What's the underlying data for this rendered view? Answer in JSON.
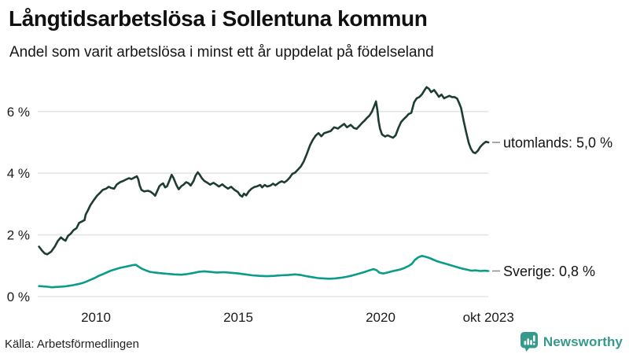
{
  "chart_data": {
    "type": "line",
    "title": "Långtidsarbetslösa i Sollentuna kommun",
    "subtitle": "Andel som varit arbetslösa i minst ett år uppdelat på födelseland",
    "legend_position": "right-end-labels",
    "grid": "horizontal",
    "y_axis": {
      "range": [
        0,
        7
      ],
      "ticks": [
        {
          "value": 0,
          "label": "0 %"
        },
        {
          "value": 2,
          "label": "2 %"
        },
        {
          "value": 4,
          "label": "4 %"
        },
        {
          "value": 6,
          "label": "6 %"
        }
      ]
    },
    "x_axis": {
      "range": [
        2008.0,
        2023.79
      ],
      "ticks": [
        {
          "year": 2010,
          "label": "2010"
        },
        {
          "year": 2015,
          "label": "2015"
        },
        {
          "year": 2020,
          "label": "2020"
        },
        {
          "year": 2023.79,
          "label": "okt 2023"
        }
      ]
    },
    "series": [
      {
        "name": "utomlands",
        "label": "utomlands: 5,0 %",
        "end_value_text": "5,0 %",
        "color": "#1d3c33",
        "points": [
          [
            2008.0,
            1.62
          ],
          [
            2008.1,
            1.5
          ],
          [
            2008.2,
            1.4
          ],
          [
            2008.29,
            1.37
          ],
          [
            2008.43,
            1.46
          ],
          [
            2008.56,
            1.63
          ],
          [
            2008.66,
            1.8
          ],
          [
            2008.77,
            1.92
          ],
          [
            2008.86,
            1.85
          ],
          [
            2008.93,
            1.81
          ],
          [
            2009.02,
            1.97
          ],
          [
            2009.12,
            2.04
          ],
          [
            2009.21,
            2.15
          ],
          [
            2009.32,
            2.22
          ],
          [
            2009.41,
            2.39
          ],
          [
            2009.5,
            2.43
          ],
          [
            2009.6,
            2.48
          ],
          [
            2009.64,
            2.66
          ],
          [
            2009.71,
            2.78
          ],
          [
            2009.81,
            2.97
          ],
          [
            2009.92,
            3.12
          ],
          [
            2010.04,
            3.27
          ],
          [
            2010.15,
            3.37
          ],
          [
            2010.24,
            3.46
          ],
          [
            2010.36,
            3.5
          ],
          [
            2010.45,
            3.56
          ],
          [
            2010.54,
            3.52
          ],
          [
            2010.64,
            3.5
          ],
          [
            2010.73,
            3.63
          ],
          [
            2010.85,
            3.71
          ],
          [
            2010.96,
            3.75
          ],
          [
            2011.07,
            3.8
          ],
          [
            2011.16,
            3.84
          ],
          [
            2011.25,
            3.81
          ],
          [
            2011.35,
            3.86
          ],
          [
            2011.44,
            3.9
          ],
          [
            2011.49,
            3.8
          ],
          [
            2011.54,
            3.6
          ],
          [
            2011.6,
            3.46
          ],
          [
            2011.69,
            3.41
          ],
          [
            2011.83,
            3.43
          ],
          [
            2011.92,
            3.4
          ],
          [
            2012.02,
            3.33
          ],
          [
            2012.08,
            3.27
          ],
          [
            2012.15,
            3.41
          ],
          [
            2012.23,
            3.58
          ],
          [
            2012.29,
            3.63
          ],
          [
            2012.36,
            3.67
          ],
          [
            2012.43,
            3.54
          ],
          [
            2012.5,
            3.58
          ],
          [
            2012.6,
            3.8
          ],
          [
            2012.66,
            3.95
          ],
          [
            2012.73,
            3.84
          ],
          [
            2012.82,
            3.63
          ],
          [
            2012.91,
            3.48
          ],
          [
            2013.0,
            3.58
          ],
          [
            2013.08,
            3.63
          ],
          [
            2013.17,
            3.71
          ],
          [
            2013.26,
            3.67
          ],
          [
            2013.33,
            3.6
          ],
          [
            2013.43,
            3.75
          ],
          [
            2013.5,
            3.92
          ],
          [
            2013.58,
            4.03
          ],
          [
            2013.65,
            3.95
          ],
          [
            2013.72,
            3.84
          ],
          [
            2013.81,
            3.75
          ],
          [
            2013.92,
            3.69
          ],
          [
            2014.01,
            3.63
          ],
          [
            2014.13,
            3.69
          ],
          [
            2014.23,
            3.63
          ],
          [
            2014.32,
            3.57
          ],
          [
            2014.44,
            3.64
          ],
          [
            2014.53,
            3.57
          ],
          [
            2014.64,
            3.5
          ],
          [
            2014.75,
            3.56
          ],
          [
            2014.87,
            3.46
          ],
          [
            2014.99,
            3.39
          ],
          [
            2015.06,
            3.29
          ],
          [
            2015.14,
            3.24
          ],
          [
            2015.2,
            3.34
          ],
          [
            2015.28,
            3.28
          ],
          [
            2015.37,
            3.41
          ],
          [
            2015.47,
            3.5
          ],
          [
            2015.56,
            3.55
          ],
          [
            2015.67,
            3.58
          ],
          [
            2015.77,
            3.62
          ],
          [
            2015.84,
            3.54
          ],
          [
            2015.93,
            3.62
          ],
          [
            2016.02,
            3.57
          ],
          [
            2016.13,
            3.6
          ],
          [
            2016.22,
            3.66
          ],
          [
            2016.31,
            3.61
          ],
          [
            2016.44,
            3.7
          ],
          [
            2016.53,
            3.74
          ],
          [
            2016.62,
            3.7
          ],
          [
            2016.71,
            3.76
          ],
          [
            2016.81,
            3.86
          ],
          [
            2016.9,
            3.98
          ],
          [
            2017.0,
            4.02
          ],
          [
            2017.1,
            4.12
          ],
          [
            2017.2,
            4.22
          ],
          [
            2017.3,
            4.38
          ],
          [
            2017.42,
            4.65
          ],
          [
            2017.52,
            4.9
          ],
          [
            2017.62,
            5.08
          ],
          [
            2017.72,
            5.22
          ],
          [
            2017.82,
            5.3
          ],
          [
            2017.92,
            5.2
          ],
          [
            2018.02,
            5.3
          ],
          [
            2018.12,
            5.33
          ],
          [
            2018.25,
            5.37
          ],
          [
            2018.37,
            5.49
          ],
          [
            2018.5,
            5.45
          ],
          [
            2018.62,
            5.53
          ],
          [
            2018.72,
            5.6
          ],
          [
            2018.82,
            5.49
          ],
          [
            2018.95,
            5.57
          ],
          [
            2019.06,
            5.47
          ],
          [
            2019.16,
            5.44
          ],
          [
            2019.25,
            5.53
          ],
          [
            2019.34,
            5.62
          ],
          [
            2019.43,
            5.7
          ],
          [
            2019.52,
            5.79
          ],
          [
            2019.61,
            5.87
          ],
          [
            2019.7,
            6.0
          ],
          [
            2019.78,
            6.18
          ],
          [
            2019.84,
            6.33
          ],
          [
            2019.89,
            6.04
          ],
          [
            2019.93,
            5.7
          ],
          [
            2019.98,
            5.45
          ],
          [
            2020.05,
            5.26
          ],
          [
            2020.16,
            5.19
          ],
          [
            2020.25,
            5.23
          ],
          [
            2020.34,
            5.19
          ],
          [
            2020.44,
            5.15
          ],
          [
            2020.53,
            5.23
          ],
          [
            2020.62,
            5.45
          ],
          [
            2020.72,
            5.66
          ],
          [
            2020.81,
            5.75
          ],
          [
            2020.9,
            5.83
          ],
          [
            2020.99,
            5.92
          ],
          [
            2021.08,
            5.96
          ],
          [
            2021.18,
            6.3
          ],
          [
            2021.27,
            6.43
          ],
          [
            2021.36,
            6.47
          ],
          [
            2021.45,
            6.55
          ],
          [
            2021.55,
            6.7
          ],
          [
            2021.62,
            6.79
          ],
          [
            2021.7,
            6.74
          ],
          [
            2021.78,
            6.63
          ],
          [
            2021.88,
            6.7
          ],
          [
            2021.96,
            6.6
          ],
          [
            2022.05,
            6.48
          ],
          [
            2022.14,
            6.55
          ],
          [
            2022.23,
            6.43
          ],
          [
            2022.32,
            6.47
          ],
          [
            2022.42,
            6.51
          ],
          [
            2022.51,
            6.47
          ],
          [
            2022.6,
            6.47
          ],
          [
            2022.69,
            6.42
          ],
          [
            2022.75,
            6.3
          ],
          [
            2022.83,
            6.12
          ],
          [
            2022.92,
            5.7
          ],
          [
            2023.01,
            5.32
          ],
          [
            2023.1,
            4.98
          ],
          [
            2023.17,
            4.8
          ],
          [
            2023.25,
            4.68
          ],
          [
            2023.33,
            4.65
          ],
          [
            2023.42,
            4.73
          ],
          [
            2023.5,
            4.85
          ],
          [
            2023.6,
            4.95
          ],
          [
            2023.7,
            5.02
          ],
          [
            2023.79,
            5.0
          ]
        ]
      },
      {
        "name": "sverige",
        "label": "Sverige: 0,8 %",
        "end_value_text": "0,8 %",
        "color": "#0b9b89",
        "points": [
          [
            2008.0,
            0.34
          ],
          [
            2008.15,
            0.33
          ],
          [
            2008.3,
            0.32
          ],
          [
            2008.45,
            0.3
          ],
          [
            2008.6,
            0.31
          ],
          [
            2008.75,
            0.32
          ],
          [
            2008.9,
            0.33
          ],
          [
            2009.05,
            0.35
          ],
          [
            2009.2,
            0.37
          ],
          [
            2009.35,
            0.4
          ],
          [
            2009.5,
            0.43
          ],
          [
            2009.65,
            0.48
          ],
          [
            2009.8,
            0.54
          ],
          [
            2009.95,
            0.6
          ],
          [
            2010.1,
            0.67
          ],
          [
            2010.25,
            0.73
          ],
          [
            2010.4,
            0.79
          ],
          [
            2010.55,
            0.85
          ],
          [
            2010.7,
            0.89
          ],
          [
            2010.85,
            0.93
          ],
          [
            2011.0,
            0.96
          ],
          [
            2011.15,
            0.99
          ],
          [
            2011.3,
            1.02
          ],
          [
            2011.4,
            1.03
          ],
          [
            2011.5,
            0.97
          ],
          [
            2011.62,
            0.9
          ],
          [
            2011.75,
            0.85
          ],
          [
            2011.9,
            0.8
          ],
          [
            2012.05,
            0.78
          ],
          [
            2012.25,
            0.76
          ],
          [
            2012.5,
            0.74
          ],
          [
            2012.75,
            0.72
          ],
          [
            2013.0,
            0.71
          ],
          [
            2013.2,
            0.73
          ],
          [
            2013.4,
            0.76
          ],
          [
            2013.6,
            0.8
          ],
          [
            2013.8,
            0.82
          ],
          [
            2014.0,
            0.8
          ],
          [
            2014.25,
            0.78
          ],
          [
            2014.5,
            0.79
          ],
          [
            2014.75,
            0.77
          ],
          [
            2015.0,
            0.75
          ],
          [
            2015.25,
            0.72
          ],
          [
            2015.5,
            0.69
          ],
          [
            2015.75,
            0.67
          ],
          [
            2016.0,
            0.66
          ],
          [
            2016.25,
            0.67
          ],
          [
            2016.5,
            0.69
          ],
          [
            2016.75,
            0.7
          ],
          [
            2017.0,
            0.72
          ],
          [
            2017.2,
            0.7
          ],
          [
            2017.4,
            0.66
          ],
          [
            2017.6,
            0.63
          ],
          [
            2017.8,
            0.6
          ],
          [
            2018.0,
            0.59
          ],
          [
            2018.2,
            0.58
          ],
          [
            2018.4,
            0.59
          ],
          [
            2018.6,
            0.61
          ],
          [
            2018.8,
            0.64
          ],
          [
            2019.0,
            0.68
          ],
          [
            2019.15,
            0.72
          ],
          [
            2019.3,
            0.76
          ],
          [
            2019.45,
            0.8
          ],
          [
            2019.6,
            0.85
          ],
          [
            2019.75,
            0.89
          ],
          [
            2019.85,
            0.86
          ],
          [
            2019.97,
            0.77
          ],
          [
            2020.1,
            0.75
          ],
          [
            2020.25,
            0.78
          ],
          [
            2020.4,
            0.82
          ],
          [
            2020.55,
            0.85
          ],
          [
            2020.7,
            0.88
          ],
          [
            2020.85,
            0.93
          ],
          [
            2021.0,
            1.0
          ],
          [
            2021.1,
            1.06
          ],
          [
            2021.2,
            1.18
          ],
          [
            2021.32,
            1.27
          ],
          [
            2021.45,
            1.32
          ],
          [
            2021.58,
            1.29
          ],
          [
            2021.72,
            1.25
          ],
          [
            2021.85,
            1.2
          ],
          [
            2022.0,
            1.14
          ],
          [
            2022.15,
            1.1
          ],
          [
            2022.3,
            1.06
          ],
          [
            2022.45,
            1.02
          ],
          [
            2022.6,
            0.98
          ],
          [
            2022.75,
            0.94
          ],
          [
            2022.9,
            0.9
          ],
          [
            2023.05,
            0.87
          ],
          [
            2023.2,
            0.84
          ],
          [
            2023.35,
            0.85
          ],
          [
            2023.5,
            0.83
          ],
          [
            2023.65,
            0.84
          ],
          [
            2023.79,
            0.83
          ]
        ]
      }
    ]
  },
  "footer": {
    "source": "Källa: Arbetsförmedlingen",
    "brand": "Newsworthy"
  },
  "colors": {
    "gridline": "#e5e5e5",
    "label_dash": "#8a8a8a",
    "brand_teal": "#35998c",
    "text": "#141414"
  }
}
